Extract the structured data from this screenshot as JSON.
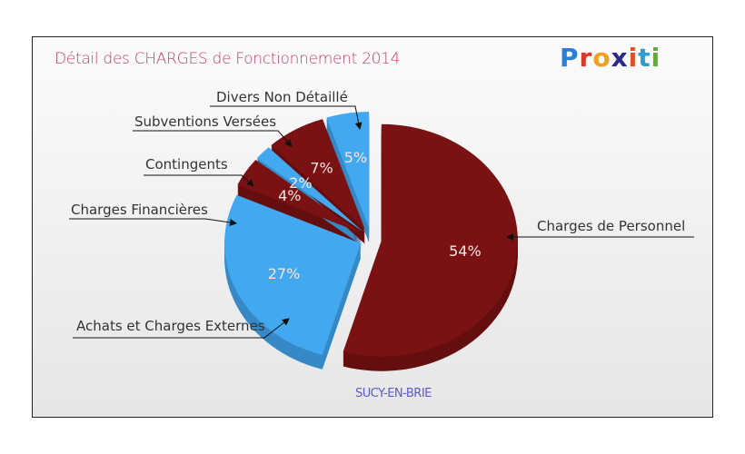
{
  "title": "Détail des CHARGES de Fonctionnement 2014",
  "logo": "Proxiti",
  "chart_data": {
    "type": "pie",
    "title": "Détail des CHARGES de Fonctionnement 2014",
    "subtitle": "SUCY-EN-BRIE",
    "categories": [
      "Charges de Personnel",
      "Achats et Charges Externes",
      "Charges Financières",
      "Contingents",
      "Subventions Versées",
      "Divers Non Détaillé"
    ],
    "values": [
      54,
      27,
      4,
      2,
      7,
      5
    ],
    "labels": [
      "54%",
      "27%",
      "4%",
      "2%",
      "7%",
      "5%"
    ],
    "colors": [
      "#7a1214",
      "#42a8f0",
      "#7a1214",
      "#42a8f0",
      "#7a1214",
      "#42a8f0"
    ],
    "style": "3d-exploded"
  }
}
